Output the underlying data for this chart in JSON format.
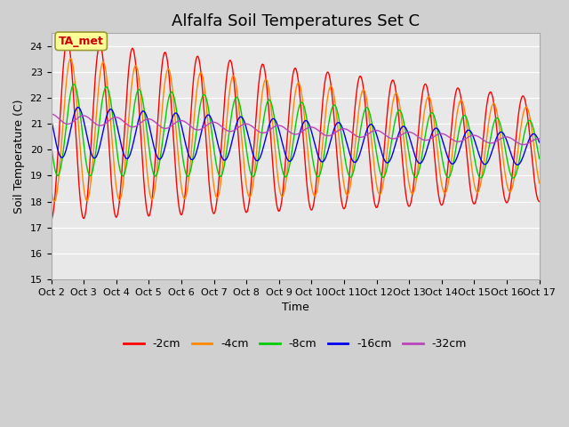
{
  "title": "Alfalfa Soil Temperatures Set C",
  "xlabel": "Time",
  "ylabel": "Soil Temperature (C)",
  "ylim": [
    15.0,
    24.5
  ],
  "yticks": [
    15.0,
    16.0,
    17.0,
    18.0,
    19.0,
    20.0,
    21.0,
    22.0,
    23.0,
    24.0
  ],
  "fig_bg_color": "#d0d0d0",
  "plot_bg_color": "#e8e8e8",
  "legend_entries": [
    "-2cm",
    "-4cm",
    "-8cm",
    "-16cm",
    "-32cm"
  ],
  "line_colors": [
    "#ff0000",
    "#ff8800",
    "#00cc00",
    "#0000ee",
    "#bb44bb"
  ],
  "annotation_text": "TA_met",
  "annotation_bg": "#ffff99",
  "annotation_border": "#999933",
  "x_start": 2.0,
  "x_end": 17.0,
  "xtick_positions": [
    2,
    3,
    4,
    5,
    6,
    7,
    8,
    9,
    10,
    11,
    12,
    13,
    14,
    15,
    16,
    17
  ],
  "xtick_labels": [
    "Oct 2",
    "Oct 3",
    "Oct 4",
    "Oct 5",
    "Oct 6",
    "Oct 7",
    "Oct 8",
    "Oct 9",
    "Oct 10",
    "Oct 11",
    "Oct 12",
    "Oct 13",
    "Oct 14",
    "Oct 15",
    "Oct 16",
    "Oct 17"
  ],
  "title_fontsize": 13,
  "axis_fontsize": 9,
  "tick_fontsize": 8,
  "legend_fontsize": 9,
  "figsize": [
    6.4,
    4.8
  ],
  "dpi": 100
}
